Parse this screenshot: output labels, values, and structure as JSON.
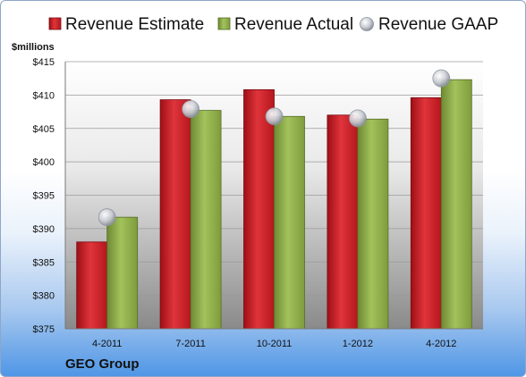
{
  "company": "GEO Group",
  "colors": {
    "estimate": "#d4202a",
    "actual": "#8fb04a",
    "gaap": "#c9ccd3",
    "plot_top": "#ffffff",
    "plot_bottom": "#8c8c8c"
  },
  "chart_data": {
    "type": "bar",
    "ylabel": "$millions",
    "ylim": [
      375,
      415
    ],
    "yticks": [
      375,
      380,
      385,
      390,
      395,
      400,
      405,
      410,
      415
    ],
    "ytick_labels": [
      "$375",
      "$380",
      "$385",
      "$390",
      "$395",
      "$400",
      "$405",
      "$410",
      "$415"
    ],
    "categories": [
      "4-2011",
      "7-2011",
      "10-2011",
      "1-2012",
      "4-2012"
    ],
    "grid": true,
    "legend_position": "top",
    "series": [
      {
        "name": "Revenue Estimate",
        "kind": "bar",
        "values": [
          388.0,
          409.3,
          410.8,
          407.0,
          409.6
        ]
      },
      {
        "name": "Revenue Actual",
        "kind": "bar",
        "values": [
          391.7,
          407.7,
          406.8,
          406.4,
          412.3
        ]
      },
      {
        "name": "Revenue GAAP",
        "kind": "marker",
        "values": [
          391.7,
          407.9,
          406.8,
          406.5,
          412.5
        ]
      }
    ]
  }
}
